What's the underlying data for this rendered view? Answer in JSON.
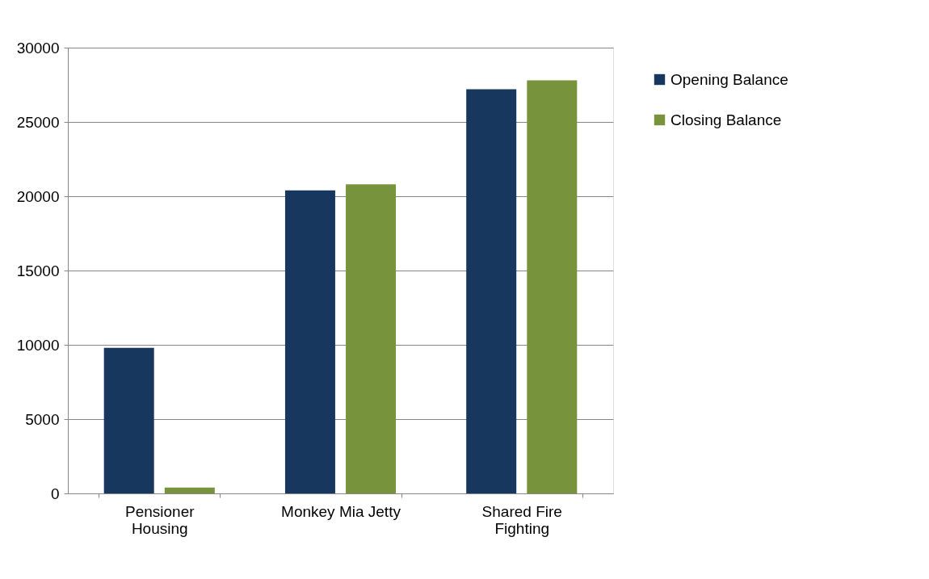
{
  "chart_data": {
    "type": "bar",
    "categories": [
      "Pensioner Housing",
      "Monkey Mia Jetty",
      "Shared Fire Fighting"
    ],
    "series": [
      {
        "name": "Opening Balance",
        "color": "#17375e",
        "values": [
          9800,
          20400,
          27200
        ]
      },
      {
        "name": "Closing Balance",
        "color": "#77933c",
        "values": [
          400,
          20800,
          27800
        ]
      }
    ],
    "ylim": [
      0,
      30000
    ],
    "yticks": [
      0,
      5000,
      10000,
      15000,
      20000,
      25000,
      30000
    ],
    "grid": "y",
    "legend": "right"
  }
}
